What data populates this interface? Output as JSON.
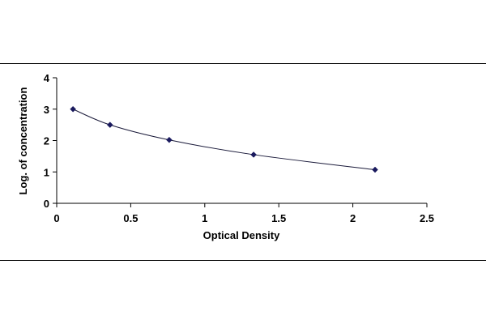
{
  "chart_data": {
    "type": "scatter",
    "title": "",
    "xlabel": "Optical Density",
    "ylabel": "Log. of concentration",
    "xlim": [
      0,
      2.5
    ],
    "ylim": [
      0,
      4
    ],
    "x_ticks": [
      "0",
      "0.5",
      "1",
      "1.5",
      "2",
      "2.5"
    ],
    "y_ticks": [
      "0",
      "1",
      "2",
      "3",
      "4"
    ],
    "grid": false,
    "legend": "none",
    "series": [
      {
        "marker": "diamond",
        "color": "#1a1a5e",
        "trendline": "smooth curve",
        "x": [
          0.11,
          0.36,
          0.76,
          1.33,
          2.15
        ],
        "y": [
          3.0,
          2.5,
          2.02,
          1.55,
          1.07
        ]
      }
    ]
  }
}
